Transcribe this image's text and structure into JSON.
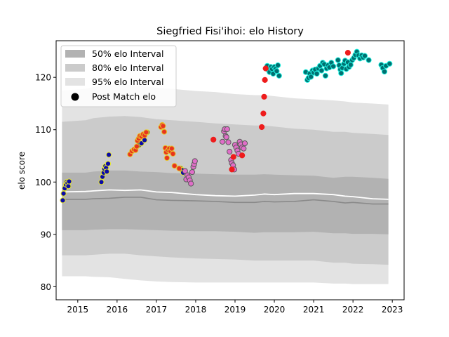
{
  "chart_data": {
    "type": "scatter",
    "title": "Siegfried Fisi'ihoi: elo History",
    "xlabel": "",
    "ylabel": "elo score",
    "xlim": [
      2014.45,
      2023.3
    ],
    "ylim": [
      77.5,
      127.0
    ],
    "x_ticks": [
      2015,
      2016,
      2017,
      2018,
      2019,
      2020,
      2021,
      2022,
      2023
    ],
    "y_ticks": [
      80,
      90,
      100,
      110,
      120
    ],
    "grid": false,
    "legend": {
      "placement": "top-left",
      "entries": [
        "50% elo Interval",
        "80% elo Interval",
        "95% elo Interval",
        "Post Match elo"
      ]
    },
    "colors": {
      "band95": "#e3e3e3",
      "band80": "#cbcbcb",
      "band50": "#b2b2b2",
      "median_line": "#8a8a8a",
      "mean_line": "#ffffff",
      "red_marker": "#ee1c1c"
    },
    "bands": {
      "x": [
        2014.6,
        2015.2,
        2015.4,
        2015.8,
        2016.2,
        2016.6,
        2017.0,
        2017.4,
        2018.0,
        2018.5,
        2019.0,
        2019.5,
        2019.75,
        2020.0,
        2020.5,
        2021.0,
        2021.5,
        2021.8,
        2022.0,
        2022.5,
        2022.9
      ],
      "p95_hi": [
        117.5,
        117.8,
        118.2,
        118.6,
        118.6,
        118.4,
        118.0,
        117.8,
        117.4,
        117.2,
        116.8,
        116.6,
        116.6,
        116.4,
        116.0,
        115.8,
        115.6,
        115.4,
        115.2,
        115.0,
        114.8
      ],
      "p80_hi": [
        111.5,
        111.8,
        112.2,
        112.5,
        112.6,
        112.4,
        112.0,
        111.8,
        111.5,
        111.2,
        111.0,
        110.8,
        110.8,
        110.6,
        110.2,
        110.0,
        109.6,
        109.6,
        109.4,
        109.2,
        109.0
      ],
      "p50_hi": [
        101.8,
        101.8,
        102.0,
        102.2,
        102.2,
        102.0,
        101.9,
        101.7,
        101.6,
        101.5,
        101.4,
        101.4,
        101.5,
        101.4,
        101.3,
        101.2,
        100.8,
        101.0,
        101.0,
        100.8,
        100.6
      ],
      "p50_lo": [
        90.8,
        90.8,
        90.9,
        91.0,
        91.0,
        90.9,
        90.8,
        90.7,
        90.6,
        90.6,
        90.5,
        90.3,
        90.4,
        90.4,
        90.4,
        90.5,
        90.2,
        90.2,
        90.1,
        90.1,
        90.0
      ],
      "p80_lo": [
        86.0,
        86.0,
        86.1,
        86.3,
        86.3,
        86.0,
        85.8,
        85.6,
        85.4,
        85.3,
        85.2,
        85.0,
        85.0,
        85.0,
        85.0,
        85.0,
        84.6,
        84.6,
        84.4,
        84.3,
        84.2
      ],
      "p95_lo": [
        82.0,
        82.0,
        81.9,
        81.8,
        81.5,
        81.2,
        81.0,
        80.9,
        80.8,
        80.8,
        80.8,
        80.8,
        80.8,
        80.8,
        80.8,
        80.8,
        80.6,
        80.6,
        80.5,
        80.5,
        80.5
      ],
      "median": [
        96.7,
        96.7,
        96.8,
        96.9,
        97.1,
        97.1,
        96.6,
        96.5,
        96.4,
        96.3,
        96.1,
        96.1,
        96.3,
        96.2,
        96.3,
        96.6,
        96.3,
        96.0,
        96.1,
        95.8,
        95.8
      ],
      "mean": [
        98.1,
        98.2,
        98.3,
        98.5,
        98.4,
        98.5,
        98.1,
        98.0,
        97.6,
        97.4,
        97.3,
        97.5,
        97.7,
        97.6,
        97.8,
        97.8,
        97.6,
        97.3,
        97.2,
        96.8,
        96.7
      ]
    },
    "series": [
      {
        "fill": "#0a0aa8",
        "edge": "#e8e82a",
        "points": [
          [
            2014.62,
            96.5
          ],
          [
            2014.64,
            97.8
          ],
          [
            2014.67,
            98.8
          ],
          [
            2014.7,
            99.5
          ],
          [
            2014.72,
            100.0
          ],
          [
            2014.74,
            99.8
          ],
          [
            2014.76,
            99.2
          ],
          [
            2014.78,
            100.1
          ],
          [
            2015.6,
            100.0
          ],
          [
            2015.63,
            101.0
          ],
          [
            2015.66,
            101.8
          ],
          [
            2015.68,
            102.5
          ],
          [
            2015.7,
            103.0
          ],
          [
            2015.72,
            102.7
          ],
          [
            2015.74,
            102.0
          ],
          [
            2015.77,
            103.5
          ],
          [
            2015.79,
            105.2
          ],
          [
            2016.55,
            107.0
          ],
          [
            2016.62,
            107.4
          ],
          [
            2016.7,
            108.0
          ],
          [
            2016.77,
            109.5
          ],
          [
            2017.62,
            102.6
          ],
          [
            2017.65,
            102.3
          ],
          [
            2017.68,
            101.8
          ]
        ]
      },
      {
        "fill": "#e8341e",
        "edge": "#e8c22a",
        "points": [
          [
            2016.33,
            105.3
          ],
          [
            2016.38,
            105.9
          ],
          [
            2016.43,
            106.2
          ],
          [
            2016.47,
            106.1
          ],
          [
            2016.5,
            106.8
          ],
          [
            2016.52,
            107.9
          ],
          [
            2016.55,
            108.3
          ],
          [
            2016.58,
            108.8
          ],
          [
            2016.62,
            108.7
          ],
          [
            2016.66,
            109.1
          ],
          [
            2016.7,
            108.9
          ],
          [
            2016.74,
            109.5
          ],
          [
            2017.12,
            110.5
          ],
          [
            2017.15,
            110.9
          ],
          [
            2017.17,
            110.7
          ],
          [
            2017.2,
            109.6
          ],
          [
            2017.23,
            106.5
          ],
          [
            2017.25,
            105.7
          ],
          [
            2017.27,
            104.6
          ],
          [
            2017.3,
            106.1
          ],
          [
            2017.33,
            106.4
          ],
          [
            2017.36,
            105.9
          ],
          [
            2017.39,
            106.4
          ],
          [
            2017.42,
            105.4
          ],
          [
            2017.46,
            103.1
          ],
          [
            2017.58,
            102.6
          ]
        ]
      },
      {
        "fill": "#e06ec8",
        "edge": "#5a5a5a",
        "points": [
          [
            2017.73,
            102.1
          ],
          [
            2017.76,
            100.5
          ],
          [
            2017.79,
            101.3
          ],
          [
            2017.82,
            100.9
          ],
          [
            2017.85,
            100.3
          ],
          [
            2017.88,
            99.7
          ],
          [
            2017.91,
            101.9
          ],
          [
            2017.94,
            102.9
          ],
          [
            2017.96,
            103.4
          ],
          [
            2017.98,
            104.0
          ],
          [
            2018.68,
            107.7
          ],
          [
            2018.72,
            109.7
          ],
          [
            2018.74,
            110.1
          ],
          [
            2018.76,
            108.8
          ],
          [
            2018.78,
            108.6
          ],
          [
            2018.8,
            110.1
          ],
          [
            2018.83,
            107.6
          ],
          [
            2018.86,
            105.8
          ],
          [
            2018.9,
            104.2
          ],
          [
            2018.92,
            103.6
          ],
          [
            2018.95,
            103.2
          ],
          [
            2018.98,
            102.4
          ],
          [
            2019.0,
            107.1
          ],
          [
            2019.03,
            106.6
          ],
          [
            2019.06,
            106.0
          ],
          [
            2019.09,
            105.4
          ],
          [
            2019.12,
            107.7
          ],
          [
            2019.15,
            107.2
          ],
          [
            2019.18,
            106.6
          ],
          [
            2019.22,
            106.4
          ],
          [
            2019.25,
            107.4
          ]
        ]
      },
      {
        "fill": "#007070",
        "edge": "#20f0e0",
        "points": [
          [
            2019.82,
            122.2
          ],
          [
            2019.85,
            121.4
          ],
          [
            2019.88,
            121.0
          ],
          [
            2019.91,
            122.0
          ],
          [
            2019.94,
            121.6
          ],
          [
            2019.97,
            120.7
          ],
          [
            2020.0,
            122.0
          ],
          [
            2020.03,
            121.6
          ],
          [
            2020.06,
            121.2
          ],
          [
            2020.09,
            122.3
          ],
          [
            2020.12,
            120.3
          ],
          [
            2020.8,
            121.0
          ],
          [
            2020.84,
            119.5
          ],
          [
            2020.87,
            119.9
          ],
          [
            2020.9,
            120.7
          ],
          [
            2020.93,
            120.1
          ],
          [
            2020.97,
            121.3
          ],
          [
            2021.0,
            120.9
          ],
          [
            2021.04,
            121.5
          ],
          [
            2021.08,
            120.7
          ],
          [
            2021.12,
            121.7
          ],
          [
            2021.16,
            122.2
          ],
          [
            2021.2,
            121.3
          ],
          [
            2021.23,
            122.8
          ],
          [
            2021.27,
            122.5
          ],
          [
            2021.3,
            120.3
          ],
          [
            2021.33,
            121.7
          ],
          [
            2021.37,
            122.3
          ],
          [
            2021.4,
            121.9
          ],
          [
            2021.45,
            122.8
          ],
          [
            2021.5,
            122.1
          ],
          [
            2021.62,
            123.3
          ],
          [
            2021.65,
            122.3
          ],
          [
            2021.68,
            121.5
          ],
          [
            2021.7,
            120.8
          ],
          [
            2021.73,
            121.8
          ],
          [
            2021.77,
            122.6
          ],
          [
            2021.8,
            123.2
          ],
          [
            2021.83,
            121.6
          ],
          [
            2021.87,
            122.9
          ],
          [
            2021.9,
            122.0
          ],
          [
            2021.94,
            122.4
          ],
          [
            2021.98,
            123.3
          ],
          [
            2022.02,
            123.7
          ],
          [
            2022.06,
            124.3
          ],
          [
            2022.1,
            124.9
          ],
          [
            2022.14,
            124.2
          ],
          [
            2022.18,
            123.6
          ],
          [
            2022.22,
            124.2
          ],
          [
            2022.26,
            123.8
          ],
          [
            2022.3,
            124.1
          ],
          [
            2022.4,
            123.3
          ],
          [
            2022.72,
            122.4
          ],
          [
            2022.76,
            121.8
          ],
          [
            2022.8,
            121.1
          ],
          [
            2022.84,
            122.2
          ],
          [
            2022.93,
            122.6
          ]
        ]
      },
      {
        "fill": "#ee1c1c",
        "edge": "#ee1c1c",
        "points": [
          [
            2018.45,
            108.1
          ],
          [
            2018.92,
            102.4
          ],
          [
            2018.96,
            104.8
          ],
          [
            2019.18,
            105.1
          ],
          [
            2019.68,
            110.5
          ],
          [
            2019.72,
            113.1
          ],
          [
            2019.74,
            116.3
          ],
          [
            2019.76,
            119.5
          ],
          [
            2019.78,
            121.7
          ],
          [
            2021.87,
            124.7
          ]
        ]
      }
    ]
  }
}
